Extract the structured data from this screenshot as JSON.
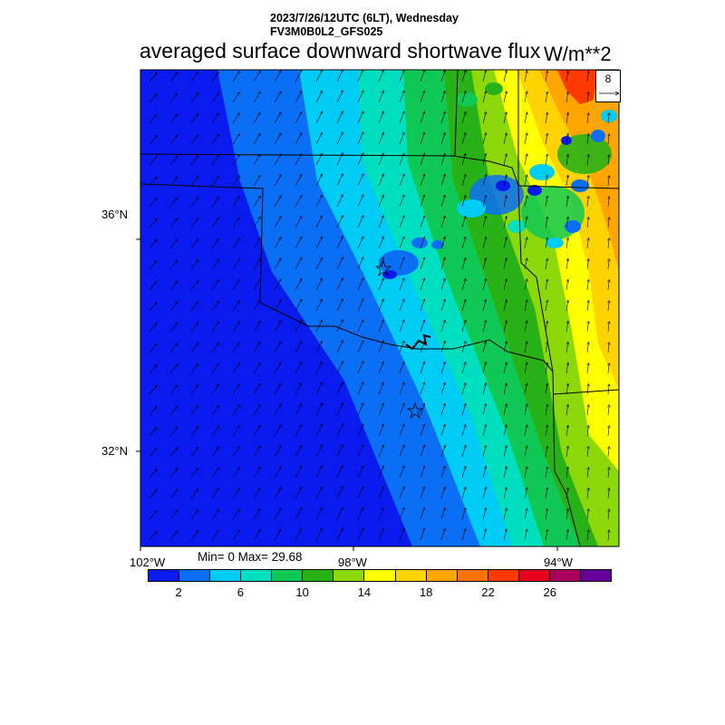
{
  "header": {
    "run_time": "2023/7/26/12UTC (6LT), Wednesday",
    "model": "FV3M0B0L2_GFS025",
    "title": "averaged surface downward shortwave flux",
    "units": "W/m**2"
  },
  "axes": {
    "lat_labels": [
      "36°N",
      "32°N"
    ],
    "lon_labels": [
      "102°W",
      "98°W",
      "94°W"
    ]
  },
  "stats": {
    "text": "Min= 0 Max= 29.68"
  },
  "colorbar": {
    "colors": [
      "#0a1bf0",
      "#0a6ff5",
      "#00ccf5",
      "#00e0c0",
      "#0fc855",
      "#28b218",
      "#8cd80a",
      "#ffff00",
      "#ffd300",
      "#ffa500",
      "#ff7400",
      "#ff3900",
      "#e8001c",
      "#a8005a",
      "#660099"
    ],
    "tick_labels": [
      "2",
      "6",
      "10",
      "14",
      "18",
      "22",
      "26"
    ]
  },
  "reference_vector": {
    "value": "8"
  }
}
